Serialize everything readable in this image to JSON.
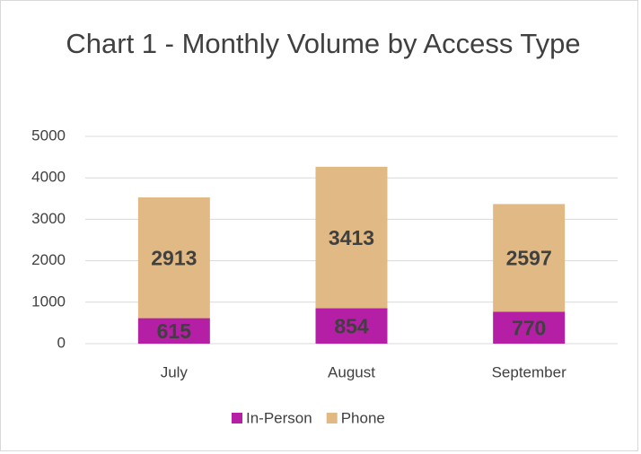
{
  "chart_data": {
    "type": "stacked_bar",
    "title": "Chart 1 - Monthly Volume by Access Type",
    "categories": [
      "July",
      "August",
      "September"
    ],
    "series": [
      {
        "name": "In-Person",
        "color": "#b41fa6",
        "values": [
          615,
          854,
          770
        ]
      },
      {
        "name": "Phone",
        "color": "#e0b984",
        "values": [
          2913,
          3413,
          2597
        ]
      }
    ],
    "ylim": [
      0,
      5000
    ],
    "yticks": [
      0,
      1000,
      2000,
      3000,
      4000,
      5000
    ],
    "grid": true,
    "legend": "bottom"
  }
}
